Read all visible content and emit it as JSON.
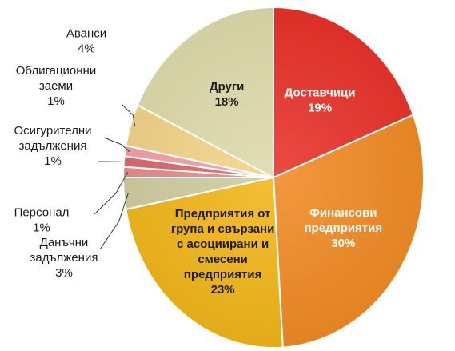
{
  "chart_data": {
    "type": "pie",
    "title": "",
    "slices": [
      {
        "label": [
          "Доставчици"
        ],
        "value_text": "19%",
        "value": 19,
        "color": "#e8322a",
        "text_color": "#ffffff",
        "placement": "inside"
      },
      {
        "label": [
          "Финансови",
          "предприятия"
        ],
        "value_text": "30%",
        "value": 30,
        "color": "#f08a24",
        "text_color": "#ffffff",
        "placement": "inside"
      },
      {
        "label": [
          "Предприятия от",
          "група и свързани",
          "с асоциирани и",
          "смесени",
          "предприятия"
        ],
        "value_text": "23%",
        "value": 23,
        "color": "#f2b61a",
        "text_color": "#1a1a1a",
        "placement": "inside"
      },
      {
        "label": [
          "Данъчни",
          "задължения"
        ],
        "value_text": "3%",
        "value": 3,
        "color": "#cfcca0",
        "text_color": "#1a1a1a",
        "placement": "outside"
      },
      {
        "label": [
          "Персонал"
        ],
        "value_text": "1%",
        "value": 1,
        "color": "#e88a8a",
        "text_color": "#1a1a1a",
        "placement": "outside"
      },
      {
        "label": [
          "Осигурителни",
          "задължения"
        ],
        "value_text": "1%",
        "value": 1,
        "color": "#d96a6a",
        "text_color": "#1a1a1a",
        "placement": "outside"
      },
      {
        "label": [
          "Облигационни",
          "заеми"
        ],
        "value_text": "1%",
        "value": 1,
        "color": "#f4a0a6",
        "text_color": "#1a1a1a",
        "placement": "outside"
      },
      {
        "label": [
          "Аванси"
        ],
        "value_text": "4%",
        "value": 4,
        "color": "#f3d488",
        "text_color": "#1a1a1a",
        "placement": "outside"
      },
      {
        "label": [
          "Други"
        ],
        "value_text": "18%",
        "value": 18,
        "color": "#dedbab",
        "text_color": "#1a1a1a",
        "placement": "inside"
      }
    ]
  }
}
